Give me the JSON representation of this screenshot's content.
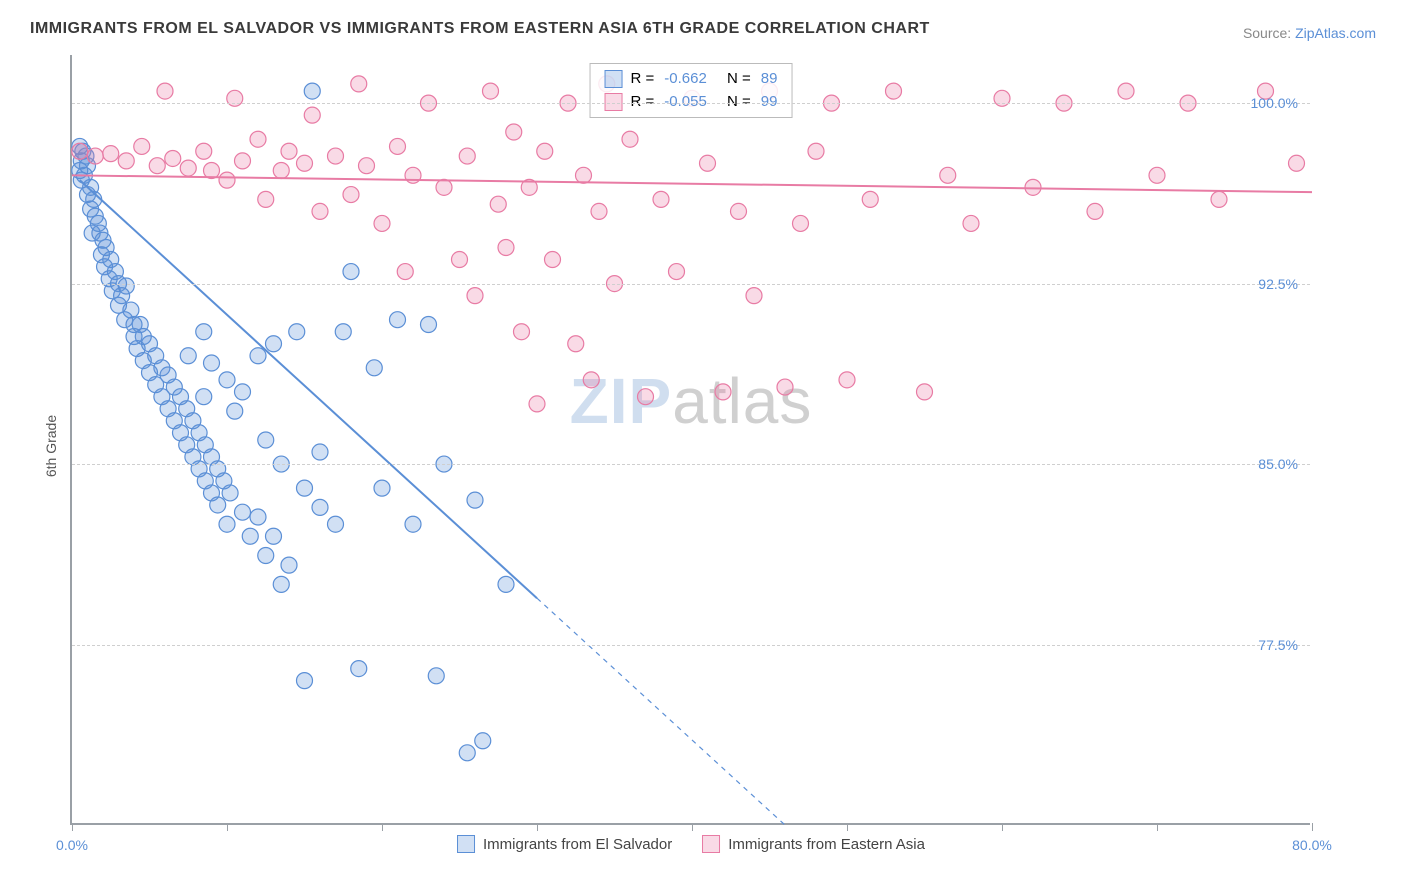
{
  "title": "IMMIGRANTS FROM EL SALVADOR VS IMMIGRANTS FROM EASTERN ASIA 6TH GRADE CORRELATION CHART",
  "source_label": "Source:",
  "source_site": "ZipAtlas.com",
  "y_axis_label": "6th Grade",
  "chart": {
    "type": "scatter",
    "background_color": "#ffffff",
    "grid_color": "#cfcfcf",
    "axis_color": "#9aa0a6",
    "xlim": [
      0,
      80
    ],
    "ylim": [
      70,
      102
    ],
    "x_ticks": [
      0,
      10,
      20,
      30,
      40,
      50,
      60,
      70,
      80
    ],
    "x_tick_labels": {
      "0": "0.0%",
      "80": "80.0%"
    },
    "y_ticks": [
      77.5,
      85.0,
      92.5,
      100.0
    ],
    "y_tick_labels": [
      "77.5%",
      "85.0%",
      "92.5%",
      "100.0%"
    ],
    "marker_radius": 8,
    "marker_stroke_width": 1.2,
    "marker_fill_opacity": 0.28,
    "line_width": 2,
    "title_fontsize": 16,
    "label_fontsize": 14
  },
  "watermark": {
    "part1": "ZIP",
    "part2": "atlas"
  },
  "series": [
    {
      "name": "Immigrants from El Salvador",
      "color": "#5b8fd6",
      "fill": "rgba(91,143,214,0.28)",
      "R": "-0.662",
      "N": "89",
      "trend": {
        "x0": 0.5,
        "y0": 96.8,
        "x1": 46,
        "y1": 70,
        "solid_until_x": 30
      },
      "points": [
        [
          0.5,
          98.2
        ],
        [
          0.7,
          98.0
        ],
        [
          0.6,
          97.6
        ],
        [
          0.9,
          97.8
        ],
        [
          0.5,
          97.2
        ],
        [
          0.8,
          97.0
        ],
        [
          1.0,
          97.4
        ],
        [
          0.6,
          96.8
        ],
        [
          1.2,
          96.5
        ],
        [
          1.0,
          96.2
        ],
        [
          1.4,
          96.0
        ],
        [
          1.2,
          95.6
        ],
        [
          1.5,
          95.3
        ],
        [
          1.7,
          95.0
        ],
        [
          1.3,
          94.6
        ],
        [
          1.8,
          94.6
        ],
        [
          2.0,
          94.3
        ],
        [
          2.2,
          94.0
        ],
        [
          1.9,
          93.7
        ],
        [
          2.5,
          93.5
        ],
        [
          2.1,
          93.2
        ],
        [
          2.8,
          93.0
        ],
        [
          2.4,
          92.7
        ],
        [
          3.0,
          92.5
        ],
        [
          2.6,
          92.2
        ],
        [
          3.2,
          92.0
        ],
        [
          3.5,
          92.4
        ],
        [
          3.0,
          91.6
        ],
        [
          3.8,
          91.4
        ],
        [
          3.4,
          91.0
        ],
        [
          4.0,
          90.8
        ],
        [
          4.4,
          90.8
        ],
        [
          4.0,
          90.3
        ],
        [
          4.6,
          90.3
        ],
        [
          4.2,
          89.8
        ],
        [
          5.0,
          90.0
        ],
        [
          4.6,
          89.3
        ],
        [
          5.4,
          89.5
        ],
        [
          5.0,
          88.8
        ],
        [
          5.8,
          89.0
        ],
        [
          5.4,
          88.3
        ],
        [
          6.2,
          88.7
        ],
        [
          5.8,
          87.8
        ],
        [
          6.6,
          88.2
        ],
        [
          6.2,
          87.3
        ],
        [
          7.0,
          87.8
        ],
        [
          7.5,
          89.5
        ],
        [
          6.6,
          86.8
        ],
        [
          7.4,
          87.3
        ],
        [
          7.0,
          86.3
        ],
        [
          7.8,
          86.8
        ],
        [
          8.5,
          87.8
        ],
        [
          7.4,
          85.8
        ],
        [
          8.2,
          86.3
        ],
        [
          8.5,
          90.5
        ],
        [
          7.8,
          85.3
        ],
        [
          8.6,
          85.8
        ],
        [
          9.0,
          89.2
        ],
        [
          8.2,
          84.8
        ],
        [
          9.0,
          85.3
        ],
        [
          10.0,
          88.5
        ],
        [
          8.6,
          84.3
        ],
        [
          9.4,
          84.8
        ],
        [
          10.5,
          87.2
        ],
        [
          9.0,
          83.8
        ],
        [
          9.8,
          84.3
        ],
        [
          11.0,
          88.0
        ],
        [
          12.0,
          89.5
        ],
        [
          9.4,
          83.3
        ],
        [
          10.2,
          83.8
        ],
        [
          12.5,
          86.0
        ],
        [
          13.0,
          90.0
        ],
        [
          10.0,
          82.5
        ],
        [
          11.0,
          83.0
        ],
        [
          13.5,
          85.0
        ],
        [
          14.5,
          90.5
        ],
        [
          11.5,
          82.0
        ],
        [
          12.0,
          82.8
        ],
        [
          15.0,
          84.0
        ],
        [
          15.5,
          100.5
        ],
        [
          12.5,
          81.2
        ],
        [
          13.0,
          82.0
        ],
        [
          16.0,
          83.2
        ],
        [
          17.5,
          90.5
        ],
        [
          13.5,
          80.0
        ],
        [
          14.0,
          80.8
        ],
        [
          17.0,
          82.5
        ],
        [
          18.0,
          93.0
        ],
        [
          15.0,
          76.0
        ],
        [
          16.0,
          85.5
        ],
        [
          18.5,
          76.5
        ],
        [
          19.5,
          89.0
        ],
        [
          20.0,
          84.0
        ],
        [
          21.0,
          91.0
        ],
        [
          22.0,
          82.5
        ],
        [
          23.0,
          90.8
        ],
        [
          23.5,
          76.2
        ],
        [
          24.0,
          85.0
        ],
        [
          25.5,
          73.0
        ],
        [
          26.0,
          83.5
        ],
        [
          26.5,
          73.5
        ],
        [
          28.0,
          80.0
        ]
      ]
    },
    {
      "name": "Immigrants from Eastern Asia",
      "color": "#e87ba4",
      "fill": "rgba(232,123,164,0.28)",
      "R": "-0.055",
      "N": "99",
      "trend": {
        "x0": 0,
        "y0": 97.0,
        "x1": 80,
        "y1": 96.3,
        "solid_until_x": 80
      },
      "points": [
        [
          0.5,
          98.0
        ],
        [
          1.5,
          97.8
        ],
        [
          2.5,
          97.9
        ],
        [
          3.5,
          97.6
        ],
        [
          4.5,
          98.2
        ],
        [
          5.5,
          97.4
        ],
        [
          6.0,
          100.5
        ],
        [
          6.5,
          97.7
        ],
        [
          7.5,
          97.3
        ],
        [
          8.5,
          98.0
        ],
        [
          9.0,
          97.2
        ],
        [
          10.0,
          96.8
        ],
        [
          10.5,
          100.2
        ],
        [
          11.0,
          97.6
        ],
        [
          12.0,
          98.5
        ],
        [
          12.5,
          96.0
        ],
        [
          13.5,
          97.2
        ],
        [
          14.0,
          98.0
        ],
        [
          15.0,
          97.5
        ],
        [
          15.5,
          99.5
        ],
        [
          16.0,
          95.5
        ],
        [
          17.0,
          97.8
        ],
        [
          18.0,
          96.2
        ],
        [
          18.5,
          100.8
        ],
        [
          19.0,
          97.4
        ],
        [
          20.0,
          95.0
        ],
        [
          21.0,
          98.2
        ],
        [
          21.5,
          93.0
        ],
        [
          22.0,
          97.0
        ],
        [
          23.0,
          100.0
        ],
        [
          24.0,
          96.5
        ],
        [
          25.0,
          93.5
        ],
        [
          25.5,
          97.8
        ],
        [
          26.0,
          92.0
        ],
        [
          27.0,
          100.5
        ],
        [
          27.5,
          95.8
        ],
        [
          28.0,
          94.0
        ],
        [
          28.5,
          98.8
        ],
        [
          29.0,
          90.5
        ],
        [
          29.5,
          96.5
        ],
        [
          30.0,
          87.5
        ],
        [
          30.5,
          98.0
        ],
        [
          31.0,
          93.5
        ],
        [
          32.0,
          100.0
        ],
        [
          32.5,
          90.0
        ],
        [
          33.0,
          97.0
        ],
        [
          33.5,
          88.5
        ],
        [
          34.0,
          95.5
        ],
        [
          34.5,
          100.8
        ],
        [
          35.0,
          92.5
        ],
        [
          36.0,
          98.5
        ],
        [
          37.0,
          87.8
        ],
        [
          38.0,
          96.0
        ],
        [
          39.0,
          93.0
        ],
        [
          40.0,
          100.2
        ],
        [
          41.0,
          97.5
        ],
        [
          42.0,
          88.0
        ],
        [
          43.0,
          95.5
        ],
        [
          44.0,
          92.0
        ],
        [
          45.0,
          100.5
        ],
        [
          46.0,
          88.2
        ],
        [
          47.0,
          95.0
        ],
        [
          48.0,
          98.0
        ],
        [
          49.0,
          100.0
        ],
        [
          50.0,
          88.5
        ],
        [
          51.5,
          96.0
        ],
        [
          53.0,
          100.5
        ],
        [
          55.0,
          88.0
        ],
        [
          56.5,
          97.0
        ],
        [
          58.0,
          95.0
        ],
        [
          60.0,
          100.2
        ],
        [
          62.0,
          96.5
        ],
        [
          64.0,
          100.0
        ],
        [
          66.0,
          95.5
        ],
        [
          68.0,
          100.5
        ],
        [
          70.0,
          97.0
        ],
        [
          72.0,
          100.0
        ],
        [
          74.0,
          96.0
        ],
        [
          77.0,
          100.5
        ],
        [
          79.0,
          97.5
        ]
      ]
    }
  ],
  "legend_top_labels": {
    "R_prefix": "R =",
    "N_prefix": "N ="
  }
}
